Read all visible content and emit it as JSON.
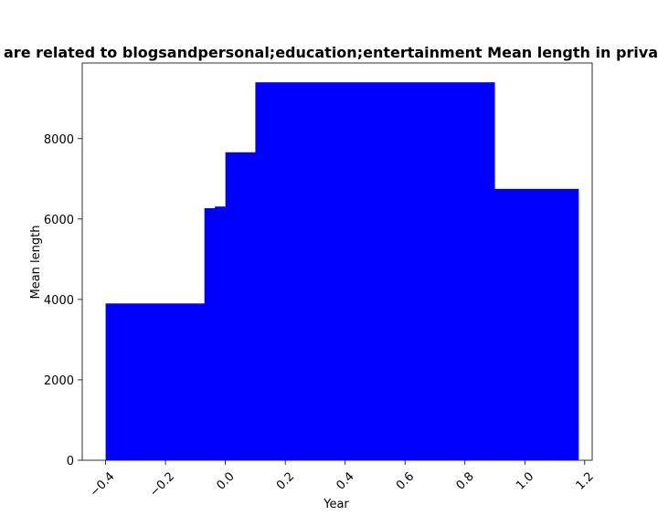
{
  "chart_data": {
    "type": "bar",
    "title": "are related to blogsandpersonal;education;entertainment Mean length in priva",
    "xlabel": "Year",
    "ylabel": "Mean length",
    "xlim": [
      -0.478,
      1.225
    ],
    "ylim": [
      0,
      9880
    ],
    "x_ticks": [
      -0.4,
      -0.2,
      0.0,
      0.2,
      0.4,
      0.6,
      0.8,
      1.0,
      1.2
    ],
    "x_tick_labels": [
      "−0.4",
      "−0.2",
      "0.0",
      "0.2",
      "0.4",
      "0.6",
      "0.8",
      "1.0",
      "1.2"
    ],
    "y_ticks": [
      0,
      2000,
      4000,
      6000,
      8000
    ],
    "y_tick_labels": [
      "0",
      "2000",
      "4000",
      "6000",
      "8000"
    ],
    "bar_color": "#0000ff",
    "bars": [
      {
        "x0": -0.4,
        "x1": 0.2,
        "value": 3900
      },
      {
        "x0": -0.07,
        "x1": 0.2,
        "value": 6270
      },
      {
        "x0": -0.035,
        "x1": 0.2,
        "value": 6310
      },
      {
        "x0": 0.0,
        "x1": 0.3,
        "value": 7660
      },
      {
        "x0": 0.1,
        "x1": 0.9,
        "value": 9400
      },
      {
        "x0": 0.9,
        "x1": 1.18,
        "value": 6750
      }
    ],
    "grid": false,
    "legend": "none"
  }
}
